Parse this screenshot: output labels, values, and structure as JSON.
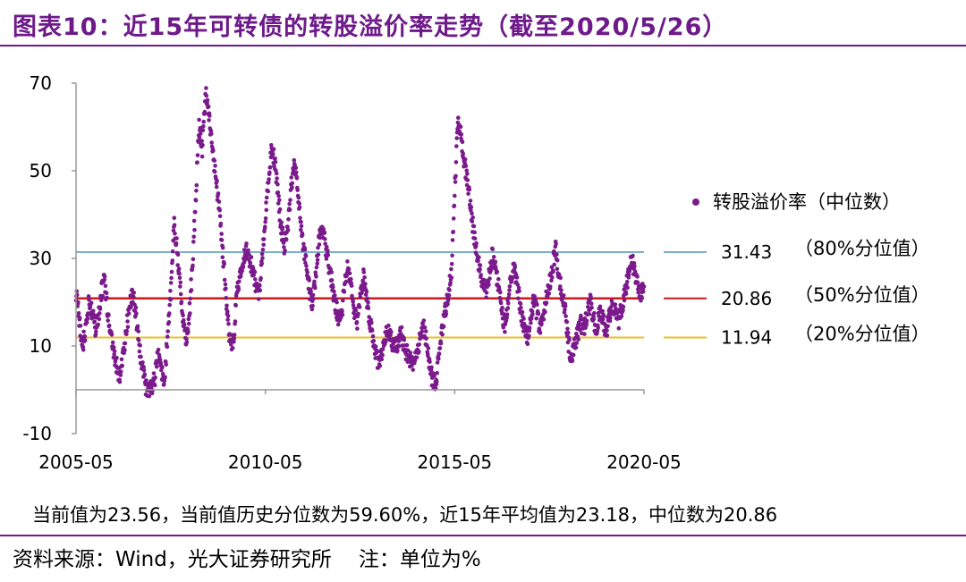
{
  "header": {
    "title": "图表10：近15年可转债的转股溢价率走势（截至2020/5/26）"
  },
  "note": "当前值为23.56，当前值历史分位数为59.60%，近15年平均值为23.18，中位数为20.86",
  "source": {
    "text": "资料来源：Wind，光大证券研究所",
    "unit_note": "注：单位为%"
  },
  "colors": {
    "title": "#6e1a8a",
    "series": "#7b1a8c",
    "p80": "#7ab0cc",
    "p50": "#cc1a1a",
    "p20": "#e8c12a",
    "axis": "#999999"
  },
  "chart_data": {
    "type": "scatter",
    "title": "",
    "xlabel": "",
    "ylabel": "",
    "xlim": [
      "2005-05",
      "2020-05"
    ],
    "ylim": [
      -10,
      70
    ],
    "yticks": [
      "70",
      "50",
      "30",
      "10",
      "-10"
    ],
    "xticks": [
      "2005-05",
      "2010-05",
      "2015-05",
      "2020-05"
    ],
    "grid": false,
    "legend_position": "right",
    "series": [
      {
        "name": "转股溢价率（中位数）",
        "points": [
          [
            "2005-05",
            22
          ],
          [
            "2005-06",
            16
          ],
          [
            "2005-07",
            10
          ],
          [
            "2005-08",
            13
          ],
          [
            "2005-09",
            20
          ],
          [
            "2005-10",
            18
          ],
          [
            "2005-11",
            14
          ],
          [
            "2005-12",
            16
          ],
          [
            "2006-01",
            22
          ],
          [
            "2006-02",
            25
          ],
          [
            "2006-03",
            18
          ],
          [
            "2006-04",
            12
          ],
          [
            "2006-05",
            8
          ],
          [
            "2006-06",
            5
          ],
          [
            "2006-07",
            3
          ],
          [
            "2006-08",
            8
          ],
          [
            "2006-09",
            14
          ],
          [
            "2006-10",
            19
          ],
          [
            "2006-11",
            22
          ],
          [
            "2006-12",
            17
          ],
          [
            "2007-01",
            10
          ],
          [
            "2007-02",
            5
          ],
          [
            "2007-03",
            1
          ],
          [
            "2007-04",
            0
          ],
          [
            "2007-05",
            0
          ],
          [
            "2007-06",
            3
          ],
          [
            "2007-07",
            8
          ],
          [
            "2007-08",
            4
          ],
          [
            "2007-09",
            2
          ],
          [
            "2007-10",
            12
          ],
          [
            "2007-11",
            22
          ],
          [
            "2007-12",
            38
          ],
          [
            "2008-01",
            32
          ],
          [
            "2008-02",
            25
          ],
          [
            "2008-03",
            15
          ],
          [
            "2008-04",
            10
          ],
          [
            "2008-05",
            18
          ],
          [
            "2008-06",
            30
          ],
          [
            "2008-07",
            45
          ],
          [
            "2008-08",
            60
          ],
          [
            "2008-09",
            55
          ],
          [
            "2008-10",
            68
          ],
          [
            "2008-11",
            63
          ],
          [
            "2008-12",
            58
          ],
          [
            "2009-01",
            50
          ],
          [
            "2009-02",
            44
          ],
          [
            "2009-03",
            36
          ],
          [
            "2009-04",
            27
          ],
          [
            "2009-05",
            17
          ],
          [
            "2009-06",
            9
          ],
          [
            "2009-07",
            12
          ],
          [
            "2009-08",
            22
          ],
          [
            "2009-09",
            26
          ],
          [
            "2009-10",
            29
          ],
          [
            "2009-11",
            32
          ],
          [
            "2009-12",
            30
          ],
          [
            "2010-01",
            27
          ],
          [
            "2010-02",
            24
          ],
          [
            "2010-03",
            21
          ],
          [
            "2010-04",
            30
          ],
          [
            "2010-05",
            40
          ],
          [
            "2010-06",
            48
          ],
          [
            "2010-07",
            56
          ],
          [
            "2010-08",
            52
          ],
          [
            "2010-09",
            45
          ],
          [
            "2010-10",
            37
          ],
          [
            "2010-11",
            33
          ],
          [
            "2010-12",
            36
          ],
          [
            "2011-01",
            45
          ],
          [
            "2011-02",
            52
          ],
          [
            "2011-03",
            48
          ],
          [
            "2011-04",
            40
          ],
          [
            "2011-05",
            33
          ],
          [
            "2011-06",
            28
          ],
          [
            "2011-07",
            23
          ],
          [
            "2011-08",
            19
          ],
          [
            "2011-09",
            27
          ],
          [
            "2011-10",
            34
          ],
          [
            "2011-11",
            38
          ],
          [
            "2011-12",
            33
          ],
          [
            "2012-01",
            29
          ],
          [
            "2012-02",
            25
          ],
          [
            "2012-03",
            20
          ],
          [
            "2012-04",
            17
          ],
          [
            "2012-05",
            16
          ],
          [
            "2012-06",
            23
          ],
          [
            "2012-07",
            28
          ],
          [
            "2012-08",
            24
          ],
          [
            "2012-09",
            19
          ],
          [
            "2012-10",
            15
          ],
          [
            "2012-11",
            20
          ],
          [
            "2012-12",
            26
          ],
          [
            "2013-01",
            22
          ],
          [
            "2013-02",
            16
          ],
          [
            "2013-03",
            12
          ],
          [
            "2013-04",
            8
          ],
          [
            "2013-05",
            6
          ],
          [
            "2013-06",
            8
          ],
          [
            "2013-07",
            12
          ],
          [
            "2013-08",
            14
          ],
          [
            "2013-09",
            11
          ],
          [
            "2013-10",
            9
          ],
          [
            "2013-11",
            11
          ],
          [
            "2013-12",
            13
          ],
          [
            "2014-01",
            10
          ],
          [
            "2014-02",
            8
          ],
          [
            "2014-03",
            7
          ],
          [
            "2014-04",
            6
          ],
          [
            "2014-05",
            8
          ],
          [
            "2014-06",
            12
          ],
          [
            "2014-07",
            15
          ],
          [
            "2014-08",
            11
          ],
          [
            "2014-09",
            6
          ],
          [
            "2014-10",
            2
          ],
          [
            "2014-11",
            1
          ],
          [
            "2014-12",
            8
          ],
          [
            "2015-01",
            14
          ],
          [
            "2015-02",
            18
          ],
          [
            "2015-03",
            22
          ],
          [
            "2015-04",
            27
          ],
          [
            "2015-05",
            45
          ],
          [
            "2015-06",
            62
          ],
          [
            "2015-07",
            58
          ],
          [
            "2015-08",
            52
          ],
          [
            "2015-09",
            48
          ],
          [
            "2015-10",
            42
          ],
          [
            "2015-11",
            36
          ],
          [
            "2015-12",
            31
          ],
          [
            "2016-01",
            27
          ],
          [
            "2016-02",
            24
          ],
          [
            "2016-03",
            22
          ],
          [
            "2016-04",
            26
          ],
          [
            "2016-05",
            31
          ],
          [
            "2016-06",
            27
          ],
          [
            "2016-07",
            23
          ],
          [
            "2016-08",
            18
          ],
          [
            "2016-09",
            14
          ],
          [
            "2016-10",
            20
          ],
          [
            "2016-11",
            26
          ],
          [
            "2016-12",
            28
          ],
          [
            "2017-01",
            23
          ],
          [
            "2017-02",
            18
          ],
          [
            "2017-03",
            14
          ],
          [
            "2017-04",
            12
          ],
          [
            "2017-05",
            16
          ],
          [
            "2017-06",
            20
          ],
          [
            "2017-07",
            18
          ],
          [
            "2017-08",
            14
          ],
          [
            "2017-09",
            17
          ],
          [
            "2017-10",
            21
          ],
          [
            "2017-11",
            24
          ],
          [
            "2017-12",
            28
          ],
          [
            "2018-01",
            32
          ],
          [
            "2018-02",
            26
          ],
          [
            "2018-03",
            22
          ],
          [
            "2018-04",
            18
          ],
          [
            "2018-05",
            11
          ],
          [
            "2018-06",
            7
          ],
          [
            "2018-07",
            10
          ],
          [
            "2018-08",
            13
          ],
          [
            "2018-09",
            15
          ],
          [
            "2018-10",
            14
          ],
          [
            "2018-11",
            17
          ],
          [
            "2018-12",
            20
          ],
          [
            "2019-01",
            16
          ],
          [
            "2019-02",
            14
          ],
          [
            "2019-03",
            18
          ],
          [
            "2019-04",
            16
          ],
          [
            "2019-05",
            13
          ],
          [
            "2019-06",
            17
          ],
          [
            "2019-07",
            20
          ],
          [
            "2019-08",
            18
          ],
          [
            "2019-09",
            16
          ],
          [
            "2019-10",
            19
          ],
          [
            "2019-11",
            22
          ],
          [
            "2019-12",
            26
          ],
          [
            "2020-01",
            30
          ],
          [
            "2020-02",
            27
          ],
          [
            "2020-03",
            24
          ],
          [
            "2020-04",
            22
          ],
          [
            "2020-05",
            23.56
          ]
        ]
      }
    ],
    "reference_lines": [
      {
        "value": 31.43,
        "label": "31.43",
        "desc": "（80%分位值）",
        "color": "#7ab0cc"
      },
      {
        "value": 20.86,
        "label": "20.86",
        "desc": "（50%分位值）",
        "color": "#cc1a1a"
      },
      {
        "value": 11.94,
        "label": "11.94",
        "desc": "（20%分位值）",
        "color": "#e8c12a"
      }
    ]
  }
}
